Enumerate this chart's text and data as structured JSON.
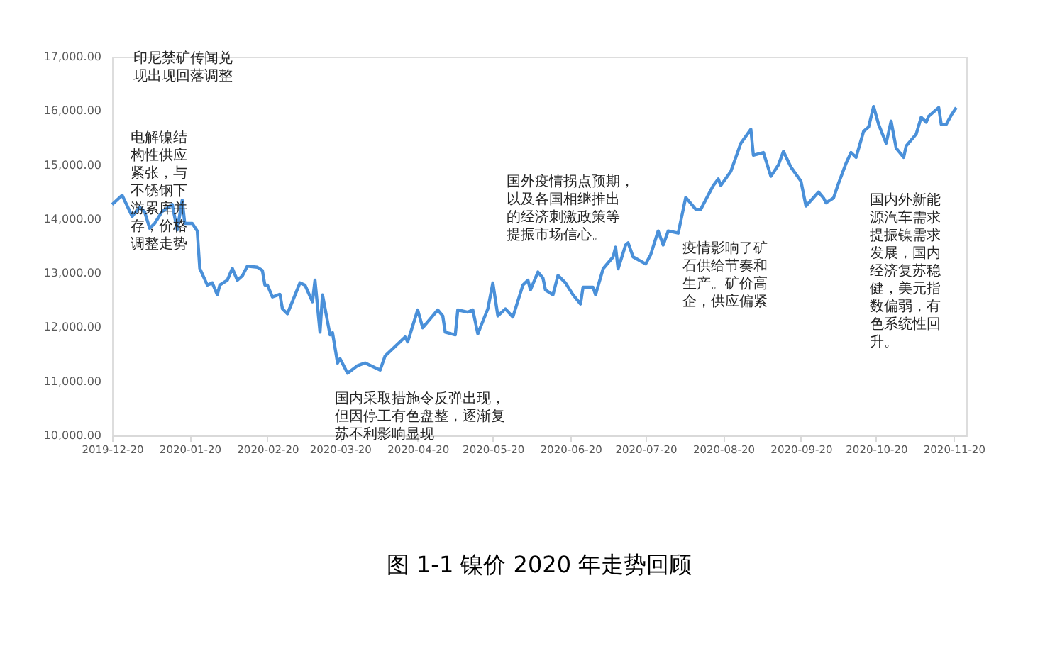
{
  "chart_data": {
    "type": "line",
    "title": "图 1-1  镍价 2020 年走势回顾",
    "x": [
      "2019-12-20",
      "2019-12-24",
      "2019-12-28",
      "2019-12-31",
      "2020-01-02",
      "2020-01-04",
      "2020-01-06",
      "2020-01-09",
      "2020-01-13",
      "2020-01-15",
      "2020-01-17",
      "2020-01-18",
      "2020-01-21",
      "2020-01-23",
      "2020-01-24",
      "2020-01-27",
      "2020-01-29",
      "2020-01-31",
      "2020-02-01",
      "2020-02-04",
      "2020-02-06",
      "2020-02-08",
      "2020-02-10",
      "2020-02-12",
      "2020-02-16",
      "2020-02-18",
      "2020-02-19",
      "2020-02-20",
      "2020-02-22",
      "2020-02-25",
      "2020-02-26",
      "2020-02-28",
      "2020-03-04",
      "2020-03-06",
      "2020-03-09",
      "2020-03-10",
      "2020-03-12",
      "2020-03-13",
      "2020-03-16",
      "2020-03-17",
      "2020-03-19",
      "2020-03-20",
      "2020-03-23",
      "2020-03-27",
      "2020-03-30",
      "2020-04-05",
      "2020-04-07",
      "2020-04-15",
      "2020-04-16",
      "2020-04-20",
      "2020-04-22",
      "2020-04-28",
      "2020-04-30",
      "2020-05-01",
      "2020-05-05",
      "2020-05-06",
      "2020-05-10",
      "2020-05-12",
      "2020-05-14",
      "2020-05-18",
      "2020-05-20",
      "2020-05-22",
      "2020-05-25",
      "2020-05-28",
      "2020-06-01",
      "2020-06-03",
      "2020-06-04",
      "2020-06-07",
      "2020-06-09",
      "2020-06-10",
      "2020-06-13",
      "2020-06-15",
      "2020-06-18",
      "2020-06-21",
      "2020-06-24",
      "2020-06-25",
      "2020-06-29",
      "2020-06-30",
      "2020-07-03",
      "2020-07-07",
      "2020-07-08",
      "2020-07-09",
      "2020-07-12",
      "2020-07-13",
      "2020-07-15",
      "2020-07-20",
      "2020-07-22",
      "2020-07-25",
      "2020-07-27",
      "2020-07-29",
      "2020-08-02",
      "2020-08-05",
      "2020-08-09",
      "2020-08-11",
      "2020-08-16",
      "2020-08-18",
      "2020-08-19",
      "2020-08-23",
      "2020-08-27",
      "2020-08-31",
      "2020-09-01",
      "2020-09-05",
      "2020-09-08",
      "2020-09-11",
      "2020-09-13",
      "2020-09-16",
      "2020-09-20",
      "2020-09-22",
      "2020-09-27",
      "2020-09-29",
      "2020-09-30",
      "2020-10-03",
      "2020-10-05",
      "2020-10-08",
      "2020-10-10",
      "2020-10-12",
      "2020-10-15",
      "2020-10-17",
      "2020-10-19",
      "2020-10-21",
      "2020-10-24",
      "2020-10-26",
      "2020-10-28",
      "2020-10-31",
      "2020-11-01",
      "2020-11-05",
      "2020-11-07",
      "2020-11-09",
      "2020-11-10",
      "2020-11-14",
      "2020-11-15",
      "2020-11-17",
      "2020-11-19",
      "2020-11-21"
    ],
    "series": [
      {
        "color": "#4a90d9",
        "values": [
          14270,
          14440,
          14050,
          14220,
          14130,
          13830,
          13920,
          14140,
          14270,
          13800,
          14350,
          13920,
          13920,
          13780,
          13090,
          12780,
          12820,
          12600,
          12780,
          12870,
          13090,
          12870,
          12950,
          13130,
          13110,
          13050,
          12780,
          12780,
          12560,
          12610,
          12340,
          12250,
          12820,
          12780,
          12470,
          12870,
          11910,
          12600,
          11860,
          11900,
          11340,
          11420,
          11150,
          11290,
          11340,
          11210,
          11470,
          11820,
          11730,
          12320,
          11990,
          12320,
          12210,
          11910,
          11860,
          12320,
          12280,
          12320,
          11880,
          12340,
          12820,
          12210,
          12340,
          12190,
          12780,
          12870,
          12690,
          13020,
          12910,
          12690,
          12600,
          12960,
          12820,
          12600,
          12430,
          12740,
          12740,
          12600,
          13080,
          13300,
          13480,
          13080,
          13520,
          13560,
          13300,
          13170,
          13340,
          13780,
          13520,
          13780,
          13740,
          14400,
          14180,
          14180,
          14620,
          14740,
          14620,
          14880,
          15400,
          15660,
          15180,
          15230,
          14790,
          15000,
          15250,
          14960,
          14700,
          14240,
          14500,
          14390,
          14300,
          14390,
          14660,
          15030,
          15230,
          15140,
          15620,
          15700,
          16080,
          15750,
          15400,
          15810,
          15310,
          15140,
          15350,
          15570,
          15880,
          15790,
          15900,
          16060,
          15750,
          15750,
          15920,
          16060
        ]
      }
    ],
    "xlim": [
      "2019-12-20",
      "2020-11-25"
    ],
    "xticks": [
      "2019-12-20",
      "2020-01-20",
      "2020-02-20",
      "2020-03-20",
      "2020-04-20",
      "2020-05-20",
      "2020-06-20",
      "2020-07-20",
      "2020-08-20",
      "2020-09-20",
      "2020-10-20",
      "2020-11-20"
    ],
    "ylim": [
      10000,
      17000
    ],
    "yticks": [
      {
        "value": 10000,
        "label": "10,000.00"
      },
      {
        "value": 11000,
        "label": "11,000.00"
      },
      {
        "value": 12000,
        "label": "12,000.00"
      },
      {
        "value": 13000,
        "label": "13,000.00"
      },
      {
        "value": 14000,
        "label": "14,000.00"
      },
      {
        "value": 15000,
        "label": "15,000.00"
      },
      {
        "value": 16000,
        "label": "16,000.00"
      },
      {
        "value": 17000,
        "label": "17,000.00"
      }
    ],
    "grid": false,
    "legend": false,
    "line_style": "solid",
    "marker": "none",
    "annotations": [
      "印尼禁矿传闻兑现出现回落调整",
      "电解镍结构性供应紧张，与不锈钢下游累库并存，价格调整走势",
      "国内采取措施令反弹出现，但因停工有色盘整，逐渐复苏不利影响显现",
      "国外疫情拐点预期，以及各国相继推出的经济刺激政策等提振市场信心。",
      "疫情影响了矿石供给节奏和生产。矿价高企，供应偏紧",
      "国内外新能源汽车需求提振镍需求发展，国内经济复苏稳健，美元指数偏弱，有色系统性回升。"
    ]
  }
}
